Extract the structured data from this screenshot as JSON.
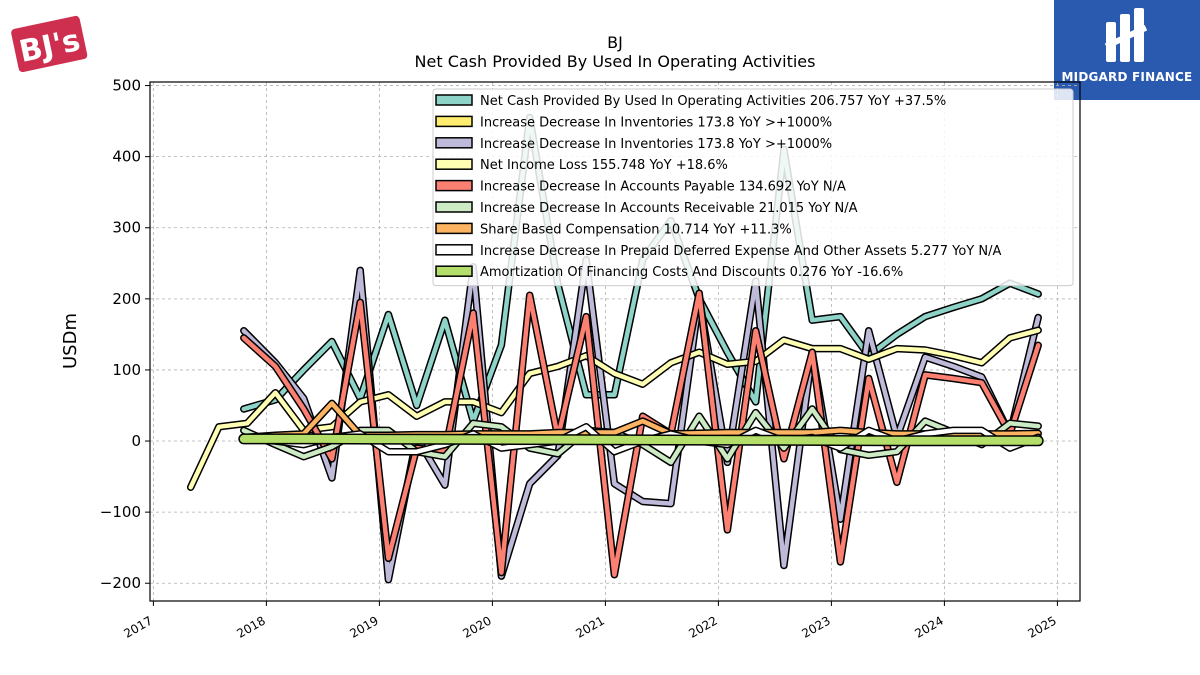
{
  "branding": {
    "left_logo_text": "BJ's",
    "right_logo_text": "MIDGARD FINANCE"
  },
  "colors": {
    "ocf": "#8dd3c7",
    "inv_yellow": "#ffed6f",
    "inv_purple": "#bebada",
    "net_income": "#ffffb3",
    "payable": "#fb8072",
    "receivable": "#ccebc5",
    "sbc": "#fdb462",
    "prepaid": "#ffffff",
    "amort": "#b3de69"
  },
  "chart_data": {
    "type": "line",
    "title": "BJ",
    "subtitle": "Net Cash Provided By Used In Operating Activities",
    "xlabel": "",
    "ylabel": "USDm",
    "xlim": [
      2016.97,
      2025.2
    ],
    "ylim": [
      -225,
      505
    ],
    "xticks": [
      "2017",
      "2018",
      "2019",
      "2020",
      "2021",
      "2022",
      "2023",
      "2024",
      "2025"
    ],
    "yticks": [
      "500",
      "400",
      "300",
      "200",
      "100",
      "0",
      "−100",
      "−200"
    ],
    "ytick_values": [
      500,
      400,
      300,
      200,
      100,
      0,
      -100,
      -200
    ],
    "grid": true,
    "legend_position": "top-right",
    "series": [
      {
        "name": "Net Cash Provided By Used In Operating Activities  206.757 YoY +37.5%",
        "color_key": "ocf",
        "points": [
          [
            2017.8,
            45
          ],
          [
            2018.08,
            58
          ],
          [
            2018.33,
            100
          ],
          [
            2018.58,
            140
          ],
          [
            2018.83,
            60
          ],
          [
            2019.08,
            178
          ],
          [
            2019.33,
            50
          ],
          [
            2019.58,
            170
          ],
          [
            2019.83,
            28
          ],
          [
            2020.08,
            135
          ],
          [
            2020.33,
            455
          ],
          [
            2020.58,
            220
          ],
          [
            2020.83,
            65
          ],
          [
            2021.08,
            65
          ],
          [
            2021.33,
            255
          ],
          [
            2021.58,
            310
          ],
          [
            2021.83,
            200
          ],
          [
            2022.08,
            125
          ],
          [
            2022.33,
            55
          ],
          [
            2022.58,
            410
          ],
          [
            2022.83,
            170
          ],
          [
            2023.08,
            175
          ],
          [
            2023.33,
            120
          ],
          [
            2023.58,
            150
          ],
          [
            2023.83,
            175
          ],
          [
            2024.08,
            188
          ],
          [
            2024.33,
            200
          ],
          [
            2024.58,
            222
          ],
          [
            2024.83,
            206.757
          ]
        ]
      },
      {
        "name": "Increase Decrease In Inventories  173.8 YoY >+1000%",
        "color_key": "inv_yellow",
        "points": []
      },
      {
        "name": "Increase Decrease In Inventories  173.8 YoY >+1000%",
        "color_key": "inv_purple",
        "points": [
          [
            2017.8,
            155
          ],
          [
            2018.08,
            110
          ],
          [
            2018.33,
            60
          ],
          [
            2018.58,
            -52
          ],
          [
            2018.83,
            240
          ],
          [
            2019.08,
            -195
          ],
          [
            2019.33,
            5
          ],
          [
            2019.58,
            -62
          ],
          [
            2019.83,
            245
          ],
          [
            2020.08,
            -190
          ],
          [
            2020.33,
            -60
          ],
          [
            2020.58,
            -20
          ],
          [
            2020.83,
            255
          ],
          [
            2021.08,
            -60
          ],
          [
            2021.33,
            -85
          ],
          [
            2021.58,
            -88
          ],
          [
            2021.83,
            200
          ],
          [
            2022.08,
            -30
          ],
          [
            2022.33,
            225
          ],
          [
            2022.58,
            -175
          ],
          [
            2022.83,
            125
          ],
          [
            2023.08,
            -110
          ],
          [
            2023.33,
            155
          ],
          [
            2023.58,
            5
          ],
          [
            2023.83,
            118
          ],
          [
            2024.08,
            105
          ],
          [
            2024.33,
            90
          ],
          [
            2024.58,
            10
          ],
          [
            2024.83,
            173.8
          ]
        ]
      },
      {
        "name": "Net Income Loss  155.748 YoY +18.6%",
        "color_key": "net_income",
        "points": [
          [
            2017.33,
            -65
          ],
          [
            2017.58,
            20
          ],
          [
            2017.83,
            25
          ],
          [
            2018.08,
            68
          ],
          [
            2018.33,
            15
          ],
          [
            2018.58,
            20
          ],
          [
            2018.83,
            55
          ],
          [
            2019.08,
            65
          ],
          [
            2019.33,
            35
          ],
          [
            2019.58,
            55
          ],
          [
            2019.83,
            55
          ],
          [
            2020.08,
            40
          ],
          [
            2020.33,
            95
          ],
          [
            2020.58,
            105
          ],
          [
            2020.83,
            120
          ],
          [
            2021.08,
            95
          ],
          [
            2021.33,
            80
          ],
          [
            2021.58,
            110
          ],
          [
            2021.83,
            125
          ],
          [
            2022.08,
            108
          ],
          [
            2022.33,
            112
          ],
          [
            2022.58,
            142
          ],
          [
            2022.83,
            130
          ],
          [
            2023.08,
            130
          ],
          [
            2023.33,
            115
          ],
          [
            2023.58,
            130
          ],
          [
            2023.83,
            128
          ],
          [
            2024.08,
            120
          ],
          [
            2024.33,
            110
          ],
          [
            2024.58,
            145
          ],
          [
            2024.83,
            155.748
          ]
        ]
      },
      {
        "name": "Increase Decrease In Accounts Payable  134.692 YoY N/A",
        "color_key": "payable",
        "points": [
          [
            2017.8,
            145
          ],
          [
            2018.08,
            105
          ],
          [
            2018.33,
            45
          ],
          [
            2018.58,
            -25
          ],
          [
            2018.83,
            195
          ],
          [
            2019.08,
            -165
          ],
          [
            2019.33,
            -10
          ],
          [
            2019.58,
            -15
          ],
          [
            2019.83,
            180
          ],
          [
            2020.08,
            -185
          ],
          [
            2020.33,
            205
          ],
          [
            2020.58,
            5
          ],
          [
            2020.83,
            175
          ],
          [
            2021.08,
            -188
          ],
          [
            2021.33,
            35
          ],
          [
            2021.58,
            10
          ],
          [
            2021.83,
            208
          ],
          [
            2022.08,
            -125
          ],
          [
            2022.33,
            155
          ],
          [
            2022.58,
            -25
          ],
          [
            2022.83,
            125
          ],
          [
            2023.08,
            -170
          ],
          [
            2023.33,
            88
          ],
          [
            2023.58,
            -58
          ],
          [
            2023.83,
            93
          ],
          [
            2024.08,
            88
          ],
          [
            2024.33,
            82
          ],
          [
            2024.58,
            10
          ],
          [
            2024.83,
            134.692
          ]
        ]
      },
      {
        "name": "Increase Decrease In Accounts Receivable  21.015 YoY N/A",
        "color_key": "receivable",
        "points": [
          [
            2017.8,
            15
          ],
          [
            2018.08,
            -5
          ],
          [
            2018.33,
            -22
          ],
          [
            2018.58,
            -8
          ],
          [
            2018.83,
            15
          ],
          [
            2019.08,
            15
          ],
          [
            2019.33,
            -15
          ],
          [
            2019.58,
            -22
          ],
          [
            2019.83,
            25
          ],
          [
            2020.08,
            20
          ],
          [
            2020.33,
            -10
          ],
          [
            2020.58,
            -18
          ],
          [
            2020.83,
            15
          ],
          [
            2021.08,
            12
          ],
          [
            2021.33,
            -5
          ],
          [
            2021.58,
            -30
          ],
          [
            2021.83,
            35
          ],
          [
            2022.08,
            -25
          ],
          [
            2022.33,
            40
          ],
          [
            2022.58,
            -10
          ],
          [
            2022.83,
            45
          ],
          [
            2023.08,
            -12
          ],
          [
            2023.33,
            -20
          ],
          [
            2023.58,
            -15
          ],
          [
            2023.83,
            28
          ],
          [
            2024.08,
            12
          ],
          [
            2024.33,
            -5
          ],
          [
            2024.58,
            25
          ],
          [
            2024.83,
            21.015
          ]
        ]
      },
      {
        "name": "Share Based Compensation  10.714 YoY +11.3%",
        "color_key": "sbc",
        "points": [
          [
            2017.8,
            5
          ],
          [
            2018.08,
            8
          ],
          [
            2018.33,
            10
          ],
          [
            2018.58,
            53
          ],
          [
            2018.83,
            8
          ],
          [
            2019.08,
            8
          ],
          [
            2019.33,
            9
          ],
          [
            2019.58,
            9
          ],
          [
            2019.83,
            10
          ],
          [
            2020.08,
            10
          ],
          [
            2020.33,
            10
          ],
          [
            2020.58,
            12
          ],
          [
            2020.83,
            12
          ],
          [
            2021.08,
            12
          ],
          [
            2021.33,
            28
          ],
          [
            2021.58,
            10
          ],
          [
            2021.83,
            11
          ],
          [
            2022.08,
            12
          ],
          [
            2022.33,
            12
          ],
          [
            2022.58,
            12
          ],
          [
            2022.83,
            12
          ],
          [
            2023.08,
            15
          ],
          [
            2023.33,
            12
          ],
          [
            2023.58,
            10
          ],
          [
            2023.83,
            10
          ],
          [
            2024.08,
            10
          ],
          [
            2024.33,
            10
          ],
          [
            2024.58,
            10
          ],
          [
            2024.83,
            10.714
          ]
        ]
      },
      {
        "name": "Increase Decrease In Prepaid Deferred Expense And Other Assets  5.277 YoY N/A",
        "color_key": "prepaid",
        "points": [
          [
            2017.8,
            3
          ],
          [
            2018.08,
            0
          ],
          [
            2018.33,
            -5
          ],
          [
            2018.58,
            5
          ],
          [
            2018.83,
            10
          ],
          [
            2019.08,
            -15
          ],
          [
            2019.33,
            -15
          ],
          [
            2019.58,
            -5
          ],
          [
            2019.83,
            10
          ],
          [
            2020.08,
            -10
          ],
          [
            2020.33,
            -5
          ],
          [
            2020.58,
            0
          ],
          [
            2020.83,
            20
          ],
          [
            2021.08,
            -15
          ],
          [
            2021.33,
            0
          ],
          [
            2021.58,
            10
          ],
          [
            2021.83,
            0
          ],
          [
            2022.08,
            -5
          ],
          [
            2022.33,
            15
          ],
          [
            2022.58,
            0
          ],
          [
            2022.83,
            5
          ],
          [
            2023.08,
            -10
          ],
          [
            2023.33,
            15
          ],
          [
            2023.58,
            0
          ],
          [
            2023.83,
            10
          ],
          [
            2024.08,
            15
          ],
          [
            2024.33,
            15
          ],
          [
            2024.58,
            -10
          ],
          [
            2024.83,
            5.277
          ]
        ]
      },
      {
        "name": "Amortization Of Financing Costs And Discounts  0.276 YoY -16.6%",
        "color_key": "amort",
        "points": [
          [
            2017.8,
            3
          ],
          [
            2018.5,
            3
          ],
          [
            2019.5,
            2.5
          ],
          [
            2020.5,
            2
          ],
          [
            2021.5,
            1.5
          ],
          [
            2022.5,
            1
          ],
          [
            2023.5,
            0.5
          ],
          [
            2024.83,
            0.276
          ]
        ]
      }
    ]
  }
}
